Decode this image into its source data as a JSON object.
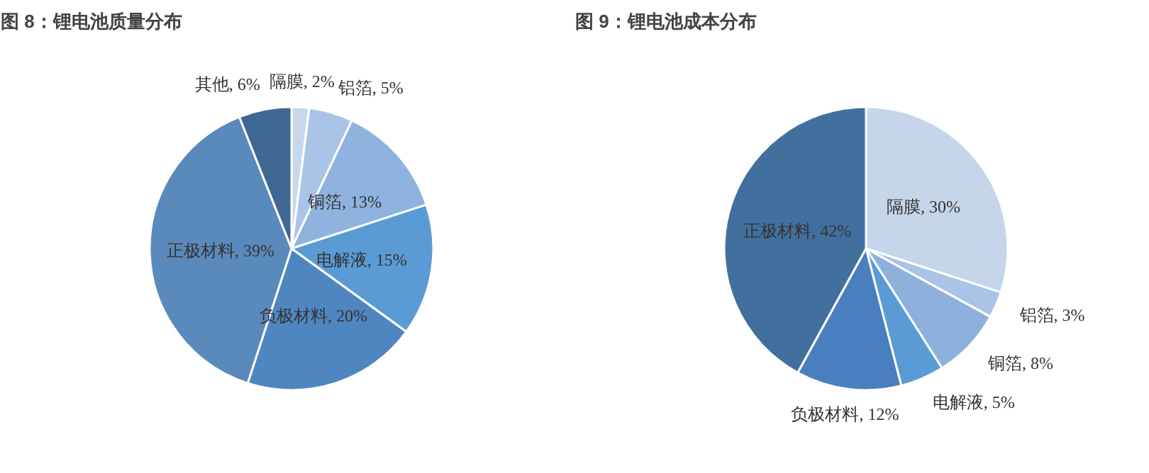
{
  "chart_data": [
    {
      "type": "pie",
      "title": "图 8：锂电池质量分布",
      "categories": [
        "隔膜",
        "铝箔",
        "铜箔",
        "电解液",
        "负极材料",
        "正极材料",
        "其他"
      ],
      "values": [
        2,
        5,
        13,
        15,
        20,
        39,
        6
      ],
      "value_labels": [
        "2%",
        "5%",
        "13%",
        "15%",
        "20%",
        "39%",
        "6%"
      ],
      "colors": [
        "#c9d7ec",
        "#a9c4e6",
        "#8fb2df",
        "#5b9bd5",
        "#4f86c0",
        "#5a89bb",
        "#3f6893"
      ]
    },
    {
      "type": "pie",
      "title": "图 9：锂电池成本分布",
      "categories": [
        "隔膜",
        "铝箔",
        "铜箔",
        "电解液",
        "负极材料",
        "正极材料"
      ],
      "values": [
        30,
        3,
        8,
        5,
        12,
        42
      ],
      "value_labels": [
        "30%",
        "3%",
        "8%",
        "5%",
        "12%",
        "42%"
      ],
      "colors": [
        "#c5d5ea",
        "#a9c4e6",
        "#8db0dc",
        "#5b9bd5",
        "#4a7fbf",
        "#41709f"
      ]
    }
  ]
}
